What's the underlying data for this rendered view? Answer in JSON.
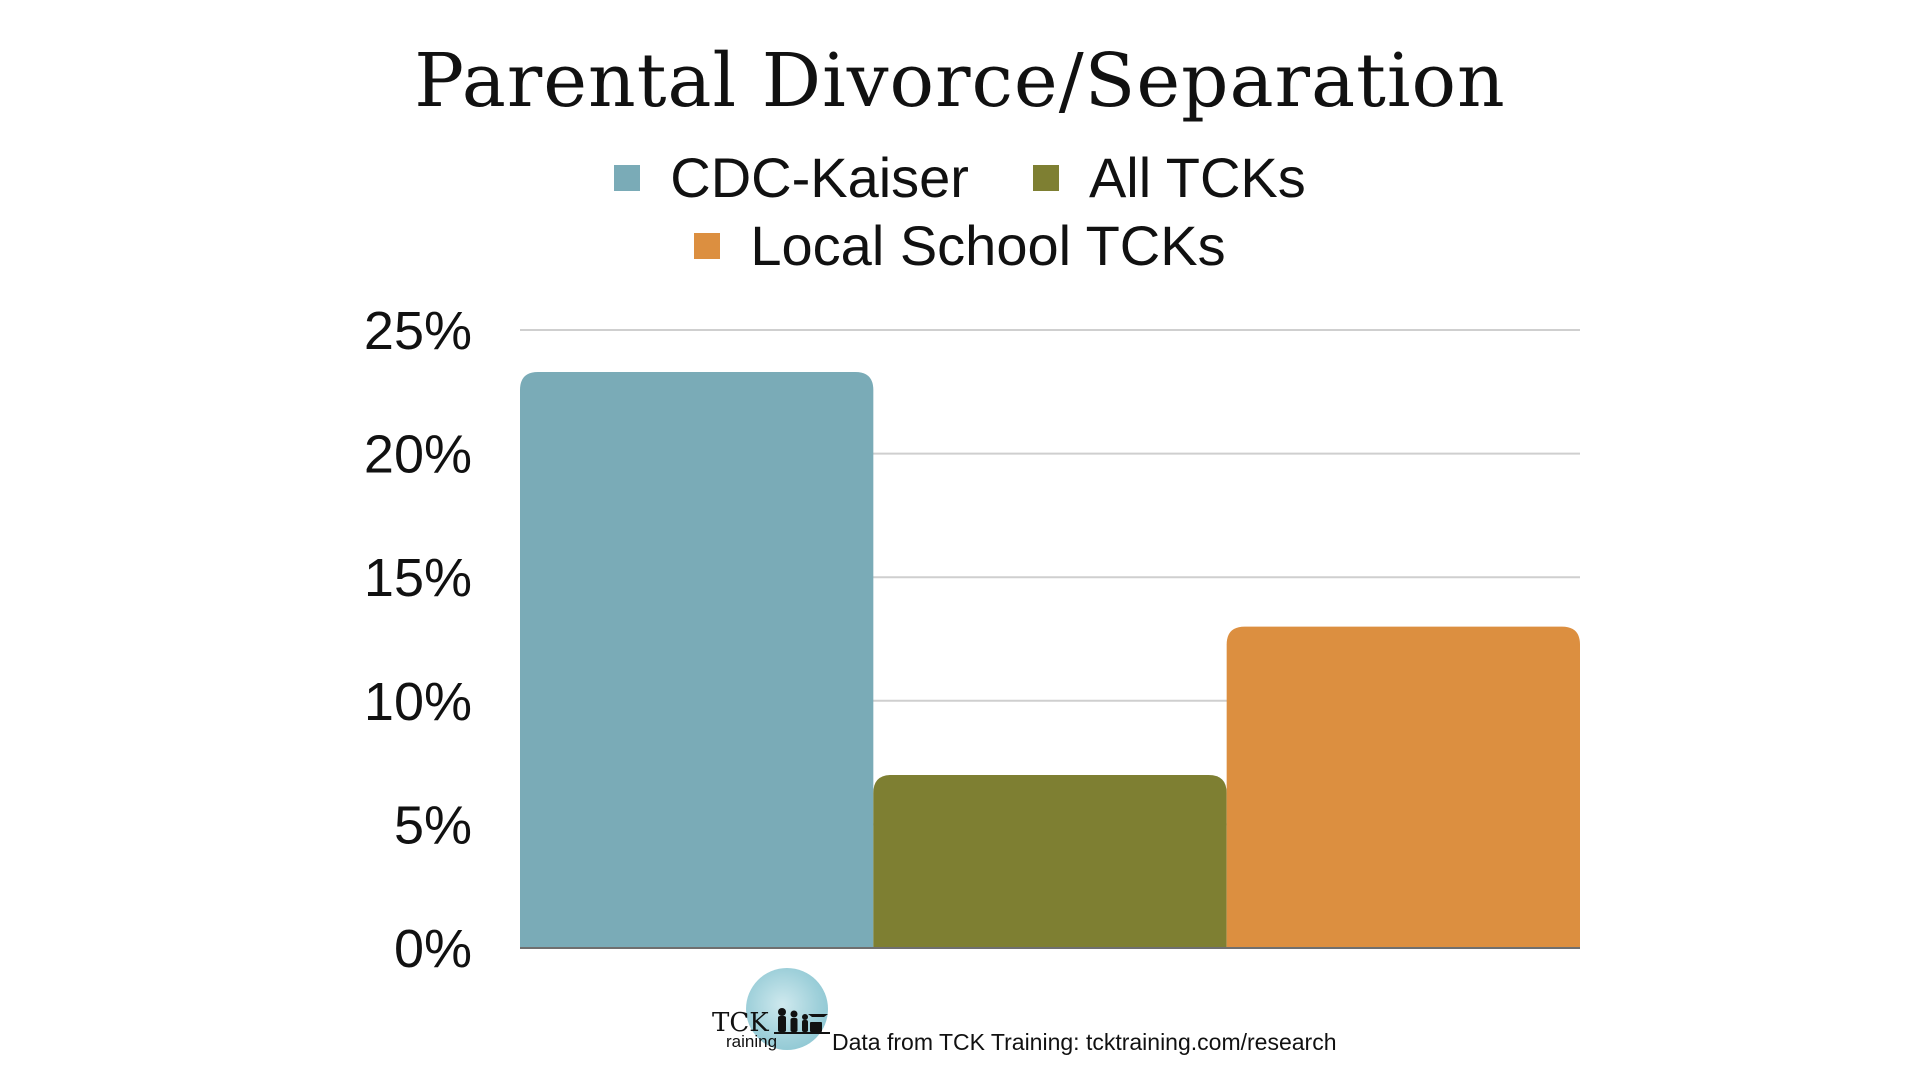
{
  "chart_data": {
    "type": "bar",
    "title": "Parental Divorce/Separation",
    "categories": [
      ""
    ],
    "series": [
      {
        "name": "CDC-Kaiser",
        "values": [
          23.3
        ],
        "color": "#7aabb7"
      },
      {
        "name": "All TCKs",
        "values": [
          7.0
        ],
        "color": "#7e7f32"
      },
      {
        "name": "Local School TCKs",
        "values": [
          13.0
        ],
        "color": "#dc8f40"
      }
    ],
    "xlabel": "",
    "ylabel": "",
    "ylim": [
      0,
      25
    ],
    "yticks": [
      "0%",
      "5%",
      "10%",
      "15%",
      "20%",
      "25%"
    ],
    "grid": true,
    "legend_position": "top"
  },
  "footer": {
    "logo_text_top": "TCK",
    "logo_text_bottom": "raining",
    "source_note": "Data from TCK Training: tcktraining.com/research"
  }
}
